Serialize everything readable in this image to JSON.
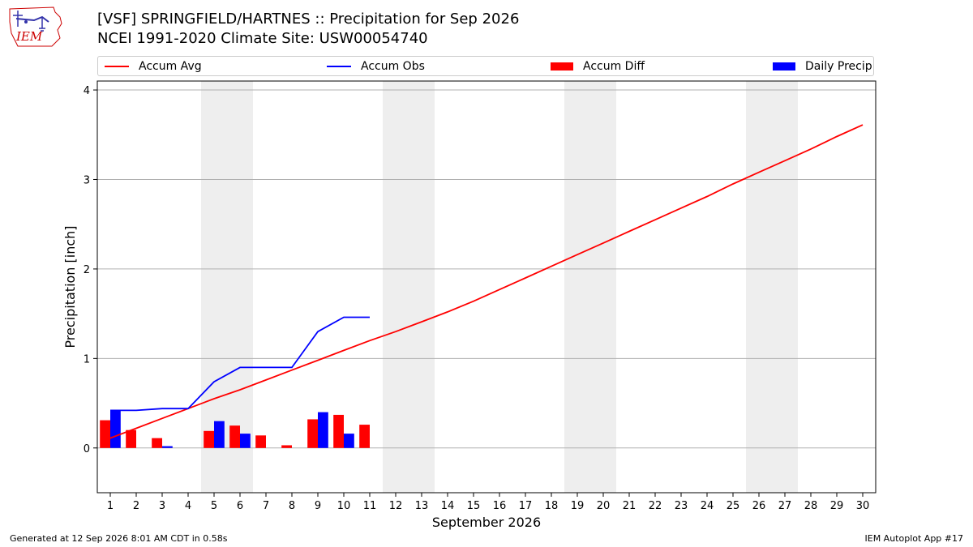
{
  "header": {
    "title_line1": "[VSF] SPRINGFIELD/HARTNES :: Precipitation for Sep 2026",
    "title_line2": "NCEI 1991-2020 Climate Site: USW00054740",
    "logo_text": "IEM"
  },
  "legend": {
    "accum_avg": "Accum Avg",
    "accum_obs": "Accum Obs",
    "accum_diff": "Accum Diff",
    "daily_precip": "Daily Precip"
  },
  "colors": {
    "accum_avg": "#ff0000",
    "accum_obs": "#0000ff",
    "accum_diff": "#ff0000",
    "daily_precip": "#0000ff",
    "weekend_shade": "#eeeeee",
    "grid": "#b0b0b0"
  },
  "chart_data": {
    "type": "bar",
    "xlabel": "September 2026",
    "ylabel": "Precipitation [inch]",
    "xlim": [
      0.5,
      30.5
    ],
    "ylim": [
      -0.5,
      4.1
    ],
    "yticks": [
      0,
      1,
      2,
      3,
      4
    ],
    "xticks": [
      1,
      2,
      3,
      4,
      5,
      6,
      7,
      8,
      9,
      10,
      11,
      12,
      13,
      14,
      15,
      16,
      17,
      18,
      19,
      20,
      21,
      22,
      23,
      24,
      25,
      26,
      27,
      28,
      29,
      30
    ],
    "grid": "horizontal",
    "legend_position": "top",
    "weekend_days": [
      5,
      6,
      12,
      13,
      19,
      20,
      26,
      27
    ],
    "series": [
      {
        "name": "Accum Avg",
        "type": "line",
        "x": [
          1,
          2,
          3,
          4,
          5,
          6,
          7,
          8,
          9,
          10,
          11,
          12,
          13,
          14,
          15,
          16,
          17,
          18,
          19,
          20,
          21,
          22,
          23,
          24,
          25,
          26,
          27,
          28,
          29,
          30
        ],
        "values": [
          0.11,
          0.22,
          0.33,
          0.44,
          0.55,
          0.65,
          0.76,
          0.87,
          0.98,
          1.09,
          1.2,
          1.3,
          1.41,
          1.52,
          1.64,
          1.77,
          1.9,
          2.03,
          2.16,
          2.29,
          2.42,
          2.55,
          2.68,
          2.81,
          2.95,
          3.08,
          3.21,
          3.34,
          3.48,
          3.61
        ]
      },
      {
        "name": "Accum Obs",
        "type": "line",
        "x": [
          1,
          2,
          3,
          4,
          5,
          6,
          7,
          8,
          9,
          10,
          11
        ],
        "values": [
          0.42,
          0.42,
          0.44,
          0.44,
          0.74,
          0.9,
          0.9,
          0.9,
          1.3,
          1.46,
          1.46
        ]
      },
      {
        "name": "Accum Diff",
        "type": "bar",
        "x": [
          1,
          2,
          3,
          4,
          5,
          6,
          7,
          8,
          9,
          10,
          11
        ],
        "values": [
          0.31,
          0.2,
          0.11,
          0.0,
          0.19,
          0.25,
          0.14,
          0.03,
          0.32,
          0.37,
          0.26
        ]
      },
      {
        "name": "Daily Precip",
        "type": "bar",
        "x": [
          1,
          2,
          3,
          4,
          5,
          6,
          7,
          8,
          9,
          10,
          11
        ],
        "values": [
          0.42,
          0.0,
          0.02,
          0.0,
          0.3,
          0.16,
          0.0,
          0.0,
          0.4,
          0.16,
          0.0
        ]
      }
    ]
  },
  "footer": {
    "generated": "Generated at 12 Sep 2026 8:01 AM CDT in 0.58s",
    "app": "IEM Autoplot App #17"
  }
}
